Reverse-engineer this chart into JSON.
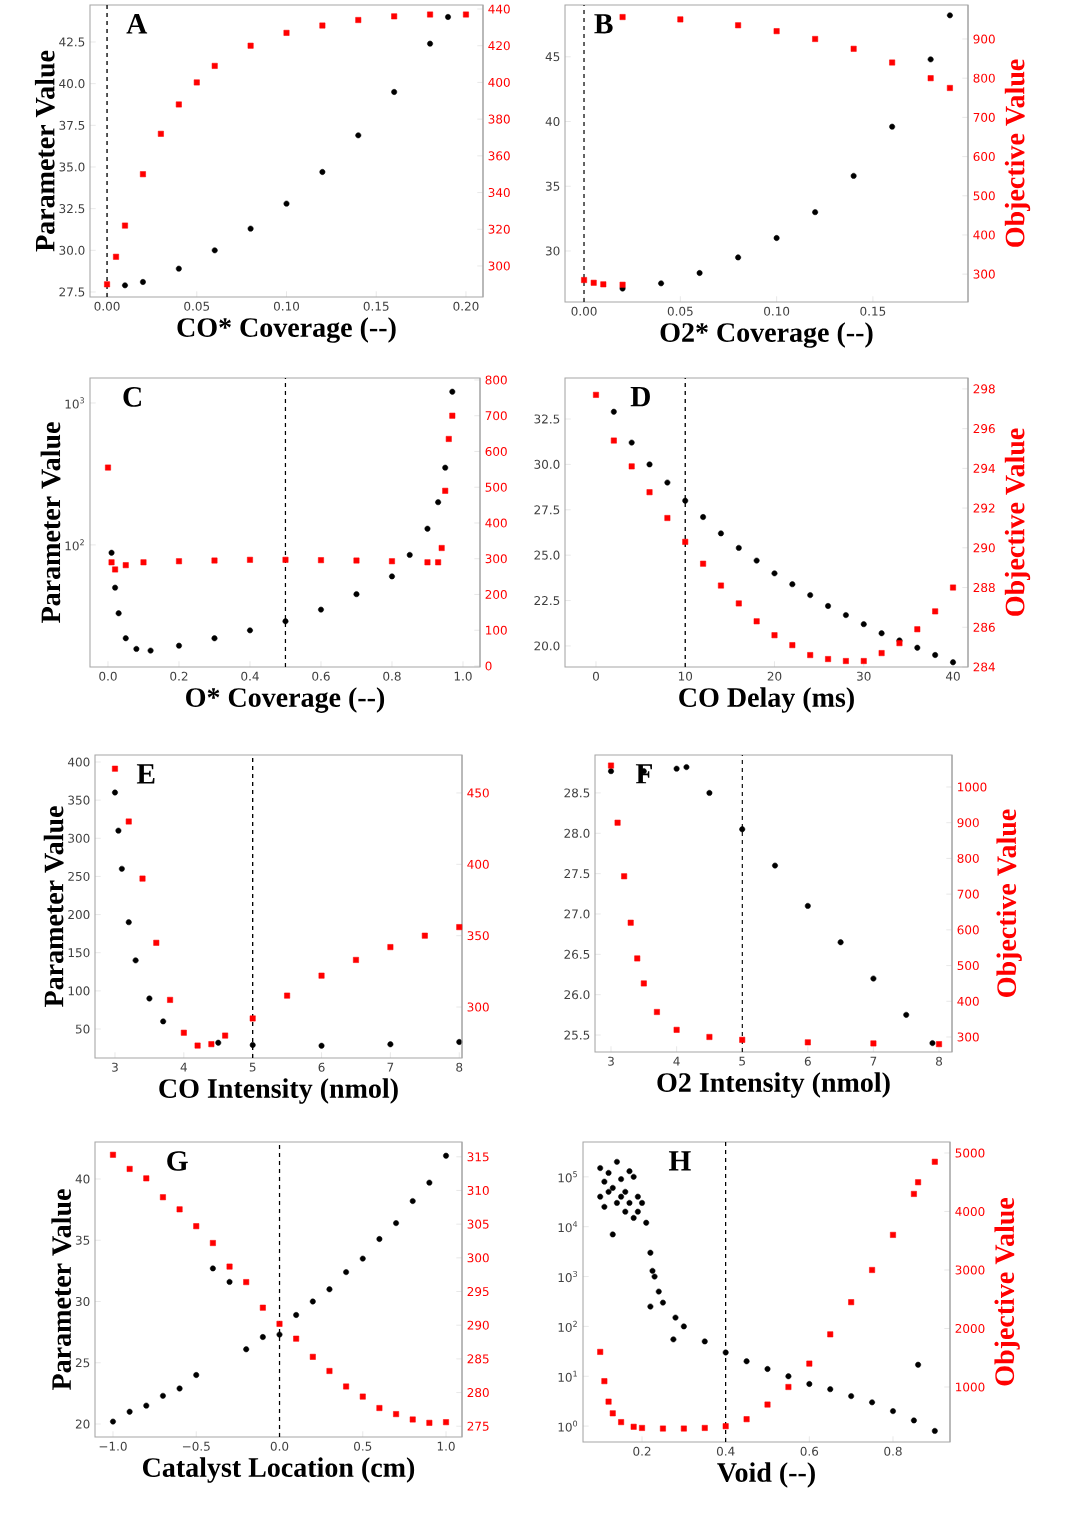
{
  "chart_data": [
    {
      "type": "scatter",
      "xlabel": "CO* Coverage (--)",
      "ylabel": "Parameter Value",
      "annotations": [
        "A"
      ],
      "xlim": [
        -0.0095,
        0.2095
      ],
      "ylim": [
        27.2,
        44.72
      ],
      "y2lim": [
        283.1,
        442.2
      ],
      "xticks": [
        {
          "value": 0,
          "label": "0.00"
        },
        {
          "value": 0.05,
          "label": "0.05"
        },
        {
          "value": 0.1,
          "label": "0.10"
        },
        {
          "value": 0.15,
          "label": "0.15"
        },
        {
          "value": 0.2,
          "label": "0.20"
        }
      ],
      "yticks": [
        27.5,
        {
          "value": 30,
          "label": "30.0"
        },
        32.5,
        {
          "value": 35,
          "label": "35.0"
        },
        37.5,
        {
          "value": 40,
          "label": "40.0"
        },
        42.5
      ],
      "y2ticks": [
        300,
        320,
        340,
        360,
        380,
        400,
        420,
        440
      ],
      "ref_lines": [
        {
          "axis": "x",
          "value": 0,
          "color": "#000000",
          "line_style": "dashed"
        }
      ],
      "series": [
        {
          "color": "#000000",
          "marker": "circle",
          "x": [
            0.01,
            0.02,
            0.04,
            0.06,
            0.08,
            0.1,
            0.12,
            0.14,
            0.16,
            0.18,
            0.19
          ],
          "values": [
            27.9,
            28.1,
            28.9,
            30.0,
            31.3,
            32.8,
            34.7,
            36.9,
            39.5,
            42.4,
            44.0
          ]
        },
        {
          "color": "#ff0000",
          "marker": "square",
          "axis": "y2",
          "x": [
            0,
            0.005,
            0.01,
            0.02,
            0.03,
            0.04,
            0.05,
            0.06,
            0.08,
            0.1,
            0.12,
            0.14,
            0.16,
            0.18,
            0.2
          ],
          "values": [
            290,
            305,
            322,
            350,
            372,
            388,
            400,
            409,
            420,
            427,
            431,
            434,
            436,
            437,
            437
          ]
        }
      ]
    },
    {
      "type": "scatter",
      "xlabel": "O2* Coverage (--)",
      "y2label": "Objective Value",
      "annotations": [
        "B"
      ],
      "xlim": [
        -0.0099,
        0.1994
      ],
      "ylim": [
        26.06,
        49.0
      ],
      "y2lim": [
        229,
        986.8
      ],
      "xticks": [
        {
          "value": 0,
          "label": "0.00"
        },
        {
          "value": 0.05,
          "label": "0.05"
        },
        {
          "value": 0.1,
          "label": "0.10"
        },
        {
          "value": 0.15,
          "label": "0.15"
        }
      ],
      "yticks": [
        30,
        35,
        40,
        45
      ],
      "y2ticks": [
        300,
        400,
        500,
        600,
        700,
        800,
        900
      ],
      "ref_lines": [
        {
          "axis": "x",
          "value": 0,
          "color": "#000000",
          "line_style": "dashed"
        }
      ],
      "series": [
        {
          "color": "#000000",
          "marker": "circle",
          "x": [
            0.02,
            0.04,
            0.06,
            0.08,
            0.1,
            0.12,
            0.14,
            0.16,
            0.18,
            0.19
          ],
          "values": [
            27.1,
            27.5,
            28.3,
            29.5,
            31.0,
            33.0,
            35.8,
            39.6,
            44.8,
            48.2
          ]
        },
        {
          "color": "#ff0000",
          "marker": "square",
          "axis": "y2",
          "x": [
            0,
            0.005,
            0.01,
            0.02,
            0.02,
            0.05,
            0.08,
            0.1,
            0.12,
            0.14,
            0.16,
            0.18,
            0.19
          ],
          "values": [
            285,
            278,
            274,
            273,
            956,
            950,
            935,
            920,
            900,
            875,
            840,
            800,
            775
          ]
        }
      ]
    },
    {
      "type": "scatter",
      "xlabel": "O* Coverage (--)",
      "ylabel": "Parameter Value",
      "annotations": [
        "C"
      ],
      "log": "y",
      "xlim": [
        -0.0507,
        1.048
      ],
      "ylim": [
        13.8,
        1500
      ],
      "y2lim": [
        -2.8,
        805.6
      ],
      "xticks": [
        {
          "value": 0,
          "label": "0.0"
        },
        {
          "value": 0.2,
          "label": "0.2"
        },
        {
          "value": 0.4,
          "label": "0.4"
        },
        {
          "value": 0.6,
          "label": "0.6"
        },
        {
          "value": 0.8,
          "label": "0.8"
        },
        {
          "value": 1,
          "label": "1.0"
        }
      ],
      "yticks": [
        {
          "value": 100,
          "label": "10$^{2}$"
        },
        {
          "value": 1000,
          "label": "10$^{3}$"
        }
      ],
      "y2ticks": [
        0,
        100,
        200,
        300,
        400,
        500,
        600,
        700,
        800
      ],
      "ref_lines": [
        {
          "axis": "x",
          "value": 0.5,
          "color": "#000000",
          "line_style": "dashed"
        }
      ],
      "series": [
        {
          "color": "#000000",
          "marker": "circle",
          "x": [
            0.01,
            0.02,
            0.03,
            0.05,
            0.08,
            0.12,
            0.2,
            0.3,
            0.4,
            0.5,
            0.6,
            0.7,
            0.8,
            0.85,
            0.9,
            0.93,
            0.95,
            0.97
          ],
          "values": [
            88,
            50,
            33,
            22,
            18.5,
            18,
            19.5,
            22,
            25,
            29,
            35,
            45,
            60,
            85,
            130,
            200,
            350,
            1200
          ]
        },
        {
          "color": "#ff0000",
          "marker": "square",
          "axis": "y2",
          "x": [
            0,
            0.01,
            0.02,
            0.05,
            0.1,
            0.2,
            0.3,
            0.4,
            0.5,
            0.6,
            0.7,
            0.8,
            0.9,
            0.93,
            0.94,
            0.95,
            0.96,
            0.97
          ],
          "values": [
            555,
            290,
            270,
            282,
            290,
            293,
            295,
            297,
            297,
            296,
            295,
            293,
            290,
            290,
            330,
            490,
            635,
            700
          ]
        }
      ]
    },
    {
      "type": "scatter",
      "xlabel": "CO Delay (ms)",
      "y2label": "Objective Value",
      "annotations": [
        "D"
      ],
      "xlim": [
        -3.47,
        41.68
      ],
      "ylim": [
        18.84,
        34.76
      ],
      "y2lim": [
        284.0,
        298.55
      ],
      "xticks": [
        0,
        10,
        20,
        30,
        40
      ],
      "yticks": [
        {
          "value": 20,
          "label": "20.0"
        },
        22.5,
        {
          "value": 25,
          "label": "25.0"
        },
        27.5,
        {
          "value": 30,
          "label": "30.0"
        },
        32.5
      ],
      "y2ticks": [
        284,
        286,
        288,
        290,
        292,
        294,
        296,
        298
      ],
      "ref_lines": [
        {
          "axis": "x",
          "value": 10,
          "color": "#000000",
          "line_style": "dashed"
        }
      ],
      "series": [
        {
          "color": "#000000",
          "marker": "circle",
          "x": [
            2,
            4,
            6,
            8,
            10,
            12,
            14,
            16,
            18,
            20,
            22,
            24,
            26,
            28,
            30,
            32,
            34,
            36,
            38,
            40
          ],
          "values": [
            32.9,
            31.2,
            30.0,
            29.0,
            28.0,
            27.1,
            26.2,
            25.4,
            24.7,
            24.0,
            23.4,
            22.8,
            22.2,
            21.7,
            21.2,
            20.7,
            20.3,
            19.9,
            19.5,
            19.1
          ]
        },
        {
          "color": "#ff0000",
          "marker": "square",
          "axis": "y2",
          "x": [
            0,
            2,
            4,
            6,
            8,
            10,
            12,
            14,
            16,
            18,
            20,
            22,
            24,
            26,
            28,
            30,
            32,
            34,
            36,
            38,
            40
          ],
          "values": [
            297.7,
            295.4,
            294.1,
            292.8,
            291.5,
            290.3,
            289.2,
            288.1,
            287.2,
            286.3,
            285.6,
            285.1,
            284.6,
            284.4,
            284.3,
            284.3,
            284.7,
            285.2,
            285.9,
            286.8,
            288.0
          ]
        }
      ]
    },
    {
      "type": "scatter",
      "xlabel": "CO Intensity (nmol)",
      "ylabel": "Parameter Value",
      "annotations": [
        "E"
      ],
      "xlim": [
        2.71,
        8.04
      ],
      "ylim": [
        12,
        409.2
      ],
      "y2lim": [
        264.3,
        476.6
      ],
      "xticks": [
        3,
        4,
        5,
        6,
        7,
        8
      ],
      "yticks": [
        50,
        100,
        150,
        200,
        250,
        300,
        350,
        400
      ],
      "y2ticks": [
        300,
        350,
        400,
        450
      ],
      "ref_lines": [
        {
          "axis": "x",
          "value": 5,
          "color": "#000000",
          "line_style": "dashed"
        }
      ],
      "series": [
        {
          "color": "#000000",
          "marker": "circle",
          "x": [
            3.0,
            3.05,
            3.1,
            3.2,
            3.3,
            3.5,
            3.7,
            4.5,
            5.0,
            6.0,
            7.0,
            8.0
          ],
          "values": [
            360,
            310,
            260,
            190,
            140,
            90,
            60,
            32,
            29,
            28,
            30,
            33
          ]
        },
        {
          "color": "#ff0000",
          "marker": "square",
          "axis": "y2",
          "x": [
            3.0,
            3.2,
            3.4,
            3.6,
            3.8,
            4.0,
            4.2,
            4.4,
            4.6,
            5.0,
            5.5,
            6.0,
            6.5,
            7.0,
            7.5,
            8.0
          ],
          "values": [
            467,
            430,
            390,
            345,
            305,
            282,
            273,
            274,
            280,
            292,
            308,
            322,
            333,
            342,
            350,
            356
          ]
        }
      ]
    },
    {
      "type": "scatter",
      "xlabel": "O2 Intensity (nmol)",
      "y2label": "Objective Value",
      "annotations": [
        "F"
      ],
      "xlim": [
        2.756,
        8.198
      ],
      "ylim": [
        25.29,
        28.97
      ],
      "y2lim": [
        258,
        1089.6
      ],
      "xticks": [
        3,
        4,
        5,
        6,
        7,
        8
      ],
      "yticks": [
        25.5,
        {
          "value": 26,
          "label": "26.0"
        },
        26.5,
        {
          "value": 27,
          "label": "27.0"
        },
        27.5,
        {
          "value": 28,
          "label": "28.0"
        },
        28.5
      ],
      "y2ticks": [
        300,
        400,
        500,
        600,
        700,
        800,
        900,
        1000
      ],
      "ref_lines": [
        {
          "axis": "x",
          "value": 5,
          "color": "#000000",
          "line_style": "dashed"
        }
      ],
      "series": [
        {
          "color": "#000000",
          "marker": "circle",
          "x": [
            3.0,
            3.5,
            4.0,
            4.15,
            4.5,
            5.0,
            5.5,
            6.0,
            6.5,
            7.0,
            7.5,
            7.9
          ],
          "values": [
            28.77,
            28.77,
            28.8,
            28.82,
            28.5,
            28.05,
            27.6,
            27.1,
            26.65,
            26.2,
            25.75,
            25.4
          ]
        },
        {
          "color": "#ff0000",
          "marker": "square",
          "axis": "y2",
          "x": [
            3.0,
            3.1,
            3.2,
            3.3,
            3.4,
            3.5,
            3.7,
            4.0,
            4.5,
            5.0,
            6.0,
            7.0,
            8.0
          ],
          "values": [
            1060,
            900,
            750,
            620,
            520,
            450,
            370,
            320,
            300,
            292,
            285,
            282,
            280
          ]
        }
      ]
    },
    {
      "type": "scatter",
      "xlabel": "Catalyst Location (cm)",
      "ylabel": "Parameter Value",
      "annotations": [
        "G"
      ],
      "xlim": [
        -1.108,
        1.096
      ],
      "ylim": [
        18.94,
        43.02
      ],
      "y2lim": [
        273.4,
        317.2
      ],
      "xticks": [
        {
          "value": -1,
          "label": "−1.0"
        },
        {
          "value": -0.5,
          "label": "−0.5"
        },
        {
          "value": 0,
          "label": "0.0"
        },
        {
          "value": 0.5,
          "label": "0.5"
        },
        {
          "value": 1,
          "label": "1.0"
        }
      ],
      "yticks": [
        20,
        25,
        30,
        35,
        40
      ],
      "y2ticks": [
        275,
        280,
        285,
        290,
        295,
        300,
        305,
        310,
        315
      ],
      "ref_lines": [
        {
          "axis": "x",
          "value": 0,
          "color": "#000000",
          "line_style": "dashed"
        }
      ],
      "series": [
        {
          "color": "#000000",
          "marker": "circle",
          "x": [
            -1.0,
            -0.9,
            -0.8,
            -0.7,
            -0.6,
            -0.5,
            -0.4,
            -0.3,
            -0.2,
            -0.1,
            0.0,
            0.1,
            0.2,
            0.3,
            0.4,
            0.5,
            0.6,
            0.7,
            0.8,
            0.9,
            1.0
          ],
          "values": [
            20.2,
            21.0,
            21.5,
            22.3,
            22.9,
            24.0,
            32.7,
            31.6,
            26.1,
            27.1,
            27.3,
            28.9,
            30.0,
            31.0,
            32.4,
            33.5,
            35.1,
            36.4,
            38.2,
            39.7,
            41.9
          ]
        },
        {
          "color": "#ff0000",
          "marker": "square",
          "axis": "y2",
          "x": [
            -1.0,
            -0.9,
            -0.8,
            -0.7,
            -0.6,
            -0.5,
            -0.4,
            -0.3,
            -0.2,
            -0.1,
            0.0,
            0.1,
            0.2,
            0.3,
            0.4,
            0.5,
            0.6,
            0.7,
            0.8,
            0.9,
            1.0
          ],
          "values": [
            315.3,
            313.2,
            311.8,
            309.0,
            307.2,
            304.7,
            302.2,
            298.7,
            296.4,
            292.6,
            290.2,
            288.0,
            285.3,
            283.2,
            280.9,
            279.4,
            277.7,
            276.8,
            276.0,
            275.5,
            275.6
          ]
        }
      ]
    },
    {
      "type": "scatter",
      "xlabel": "Void (--)",
      "y2label": "Objective Value",
      "annotations": [
        "H"
      ],
      "log": "y",
      "xlim": [
        0.0589,
        0.9363
      ],
      "ylim": [
        0.48,
        500000
      ],
      "y2lim": [
        60,
        5188
      ],
      "xticks": [
        0.2,
        0.4,
        0.6,
        0.8
      ],
      "yticks": [
        {
          "value": 1,
          "label": "10$^{0}$"
        },
        {
          "value": 10,
          "label": "10$^{1}$"
        },
        {
          "value": 100,
          "label": "10$^{2}$"
        },
        {
          "value": 1000,
          "label": "10$^{3}$"
        },
        {
          "value": 10000,
          "label": "10$^{4}$"
        },
        {
          "value": 100000,
          "label": "10$^{5}$"
        }
      ],
      "y2ticks": [
        1000,
        2000,
        3000,
        4000,
        5000
      ],
      "ref_lines": [
        {
          "axis": "x",
          "value": 0.4,
          "color": "#000000",
          "line_style": "dashed"
        }
      ],
      "series": [
        {
          "color": "#000000",
          "marker": "circle",
          "x": [
            0.1,
            0.1,
            0.11,
            0.11,
            0.12,
            0.12,
            0.13,
            0.13,
            0.14,
            0.14,
            0.15,
            0.15,
            0.16,
            0.16,
            0.17,
            0.17,
            0.18,
            0.18,
            0.19,
            0.19,
            0.2,
            0.21,
            0.22,
            0.225,
            0.22,
            0.23,
            0.24,
            0.25,
            0.275,
            0.28,
            0.3,
            0.35,
            0.4,
            0.45,
            0.5,
            0.55,
            0.6,
            0.65,
            0.7,
            0.75,
            0.8,
            0.85,
            0.86,
            0.9
          ],
          "values": [
            150000,
            40000,
            80000,
            25000,
            120000,
            50000,
            7000,
            60000,
            200000,
            30000,
            90000,
            40000,
            50000,
            20000,
            130000,
            30000,
            100000,
            15000,
            40000,
            20000,
            30000,
            12000,
            3000,
            1300,
            250,
            1000,
            500,
            300,
            55,
            150,
            100,
            50,
            30,
            20,
            14,
            10,
            7,
            5.5,
            4,
            3,
            2,
            1.3,
            17,
            0.8
          ]
        },
        {
          "color": "#ff0000",
          "marker": "square",
          "axis": "y2",
          "x": [
            0.1,
            0.11,
            0.12,
            0.13,
            0.15,
            0.18,
            0.2,
            0.25,
            0.3,
            0.35,
            0.4,
            0.45,
            0.5,
            0.55,
            0.6,
            0.65,
            0.7,
            0.75,
            0.8,
            0.85,
            0.86,
            0.9
          ],
          "values": [
            1600,
            1100,
            750,
            550,
            400,
            320,
            300,
            290,
            290,
            300,
            330,
            450,
            700,
            1000,
            1400,
            1900,
            2450,
            3000,
            3600,
            4300,
            4500,
            4850
          ]
        }
      ]
    }
  ]
}
